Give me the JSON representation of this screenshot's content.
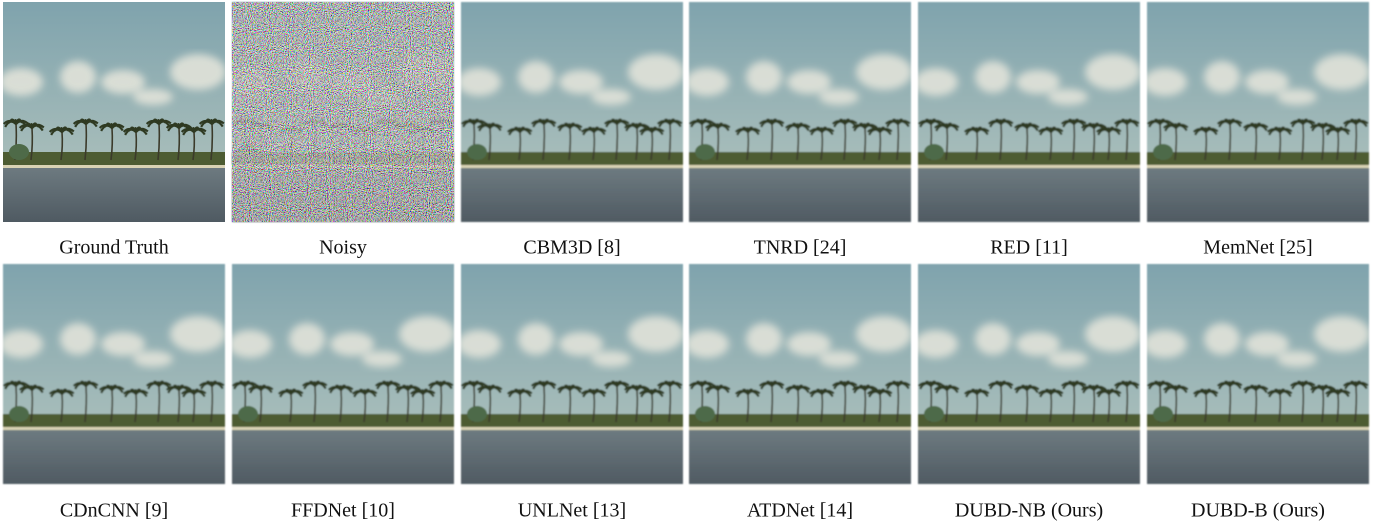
{
  "figure": {
    "rows": [
      [
        {
          "caption": "Ground Truth"
        },
        {
          "caption": "Noisy"
        },
        {
          "caption": "CBM3D [8]"
        },
        {
          "caption": "TNRD [24]"
        },
        {
          "caption": "RED [11]"
        },
        {
          "caption": "MemNet [25]"
        }
      ],
      [
        {
          "caption": "CDnCNN [9]"
        },
        {
          "caption": "FFDNet [10]"
        },
        {
          "caption": "UNLNet [13]"
        },
        {
          "caption": "ATDNet [14]"
        },
        {
          "caption": "DUBD-NB (Ours)"
        },
        {
          "caption": "DUBD-B (Ours)"
        }
      ]
    ]
  }
}
